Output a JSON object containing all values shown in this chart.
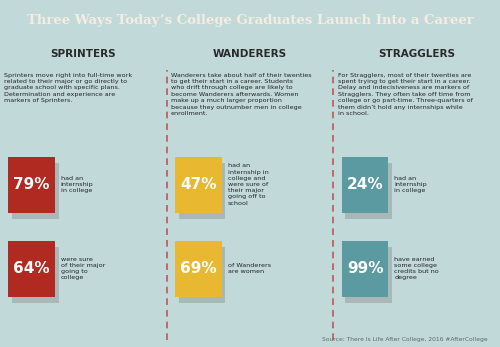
{
  "title": "Three Ways Today’s College Graduates Launch Into a Career",
  "title_bg": "#a63228",
  "title_color": "#f5ede0",
  "header_bg": "#8fb8bb",
  "header_color": "#2a2a2a",
  "body_bg": "#c2d9da",
  "columns": [
    "SPRINTERS",
    "WANDERERS",
    "STRAGGLERS"
  ],
  "col_texts": [
    "Sprinters move right into full-time work\nrelated to their major or go directly to\ngraduate school with specific plans.\nDetermination and experience are\nmarkers of Sprinters.",
    "Wanderers take about half of their twenties\nto get their start in a career. Students\nwho drift through college are likely to\nbecome Wanderers afterwards. Women\nmake up a much larger proportion\nbecause they outnumber men in college\nenrollment.",
    "For Stragglers, most of their twenties are\nspent trying to get their start in a career.\nDelay and indecisiveness are markers of\nStragglers. They often take off time from\ncollege or go part-time. Three-quarters of\nthem didn’t hold any internships while\nin school."
  ],
  "stats": [
    [
      {
        "pct": "79%",
        "label": "had an\ninternship\nin college",
        "color": "#b02a22"
      },
      {
        "pct": "64%",
        "label": "were sure\nof their major\ngoing to\ncollege",
        "color": "#b02a22"
      }
    ],
    [
      {
        "pct": "47%",
        "label": "had an\ninternship in\ncollege and\nwere sure of\ntheir major\ngoing off to\nschool",
        "color": "#e8b830"
      },
      {
        "pct": "69%",
        "label": "of Wanderers\nare women",
        "color": "#e8b830"
      }
    ],
    [
      {
        "pct": "24%",
        "label": "had an\ninternship\nin college",
        "color": "#5a9aa0"
      },
      {
        "pct": "99%",
        "label": "have earned\nsome college\ncredits but no\ndegree",
        "color": "#5a9aa0"
      }
    ]
  ],
  "shadow_color": "#a8b8b8",
  "source": "Source: There Is Life After College, 2016 #AfterCollege",
  "divider_color": "#c04040"
}
